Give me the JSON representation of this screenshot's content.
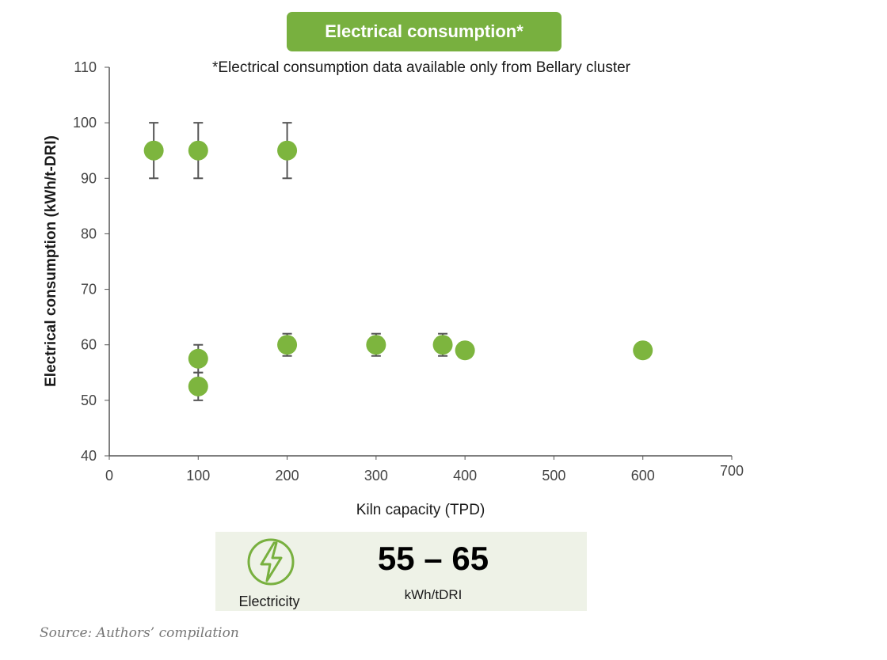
{
  "chart_data": {
    "type": "scatter",
    "title": "Electrical consumption*",
    "subtitle": "*Electrical consumption data available only from Bellary cluster",
    "xlabel": "Kiln capacity (TPD)",
    "ylabel": "Electrical consumption (kWh/t-DRI)",
    "xlim": [
      0,
      700
    ],
    "ylim": [
      40,
      110
    ],
    "xticks": [
      0,
      100,
      200,
      300,
      400,
      500,
      600,
      700
    ],
    "yticks": [
      40,
      50,
      60,
      70,
      80,
      90,
      100,
      110
    ],
    "grid": false,
    "points": [
      {
        "x": 50,
        "y": 95,
        "err_low": 90,
        "err_high": 100
      },
      {
        "x": 100,
        "y": 95,
        "err_low": 90,
        "err_high": 100
      },
      {
        "x": 200,
        "y": 95,
        "err_low": 90,
        "err_high": 100
      },
      {
        "x": 100,
        "y": 57.5,
        "err_low": 55,
        "err_high": 60
      },
      {
        "x": 100,
        "y": 52.5,
        "err_low": 50,
        "err_high": 55
      },
      {
        "x": 200,
        "y": 60,
        "err_low": 58,
        "err_high": 62
      },
      {
        "x": 300,
        "y": 60,
        "err_low": 58,
        "err_high": 62
      },
      {
        "x": 375,
        "y": 60,
        "err_low": 58,
        "err_high": 62
      },
      {
        "x": 400,
        "y": 59
      },
      {
        "x": 600,
        "y": 59
      }
    ],
    "marker_color": "#7db53e",
    "errorbar_color": "#555555"
  },
  "summary": {
    "icon": "lightning-bolt-icon",
    "caption": "Electricity",
    "value": "55 – 65",
    "unit": "kWh/tDRI"
  },
  "source": "Source: Authors’ compilation",
  "colors": {
    "accent": "#78b03f",
    "info_bg": "#eef2e7"
  }
}
